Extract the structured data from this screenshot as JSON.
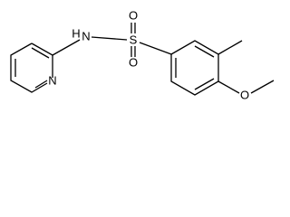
{
  "atoms": [
    {
      "label": "N"
    },
    {
      "label": "H"
    },
    {
      "label": "N"
    },
    {
      "label": "S"
    },
    {
      "label": "O"
    },
    {
      "label": "O"
    },
    {
      "label": "O"
    }
  ]
}
